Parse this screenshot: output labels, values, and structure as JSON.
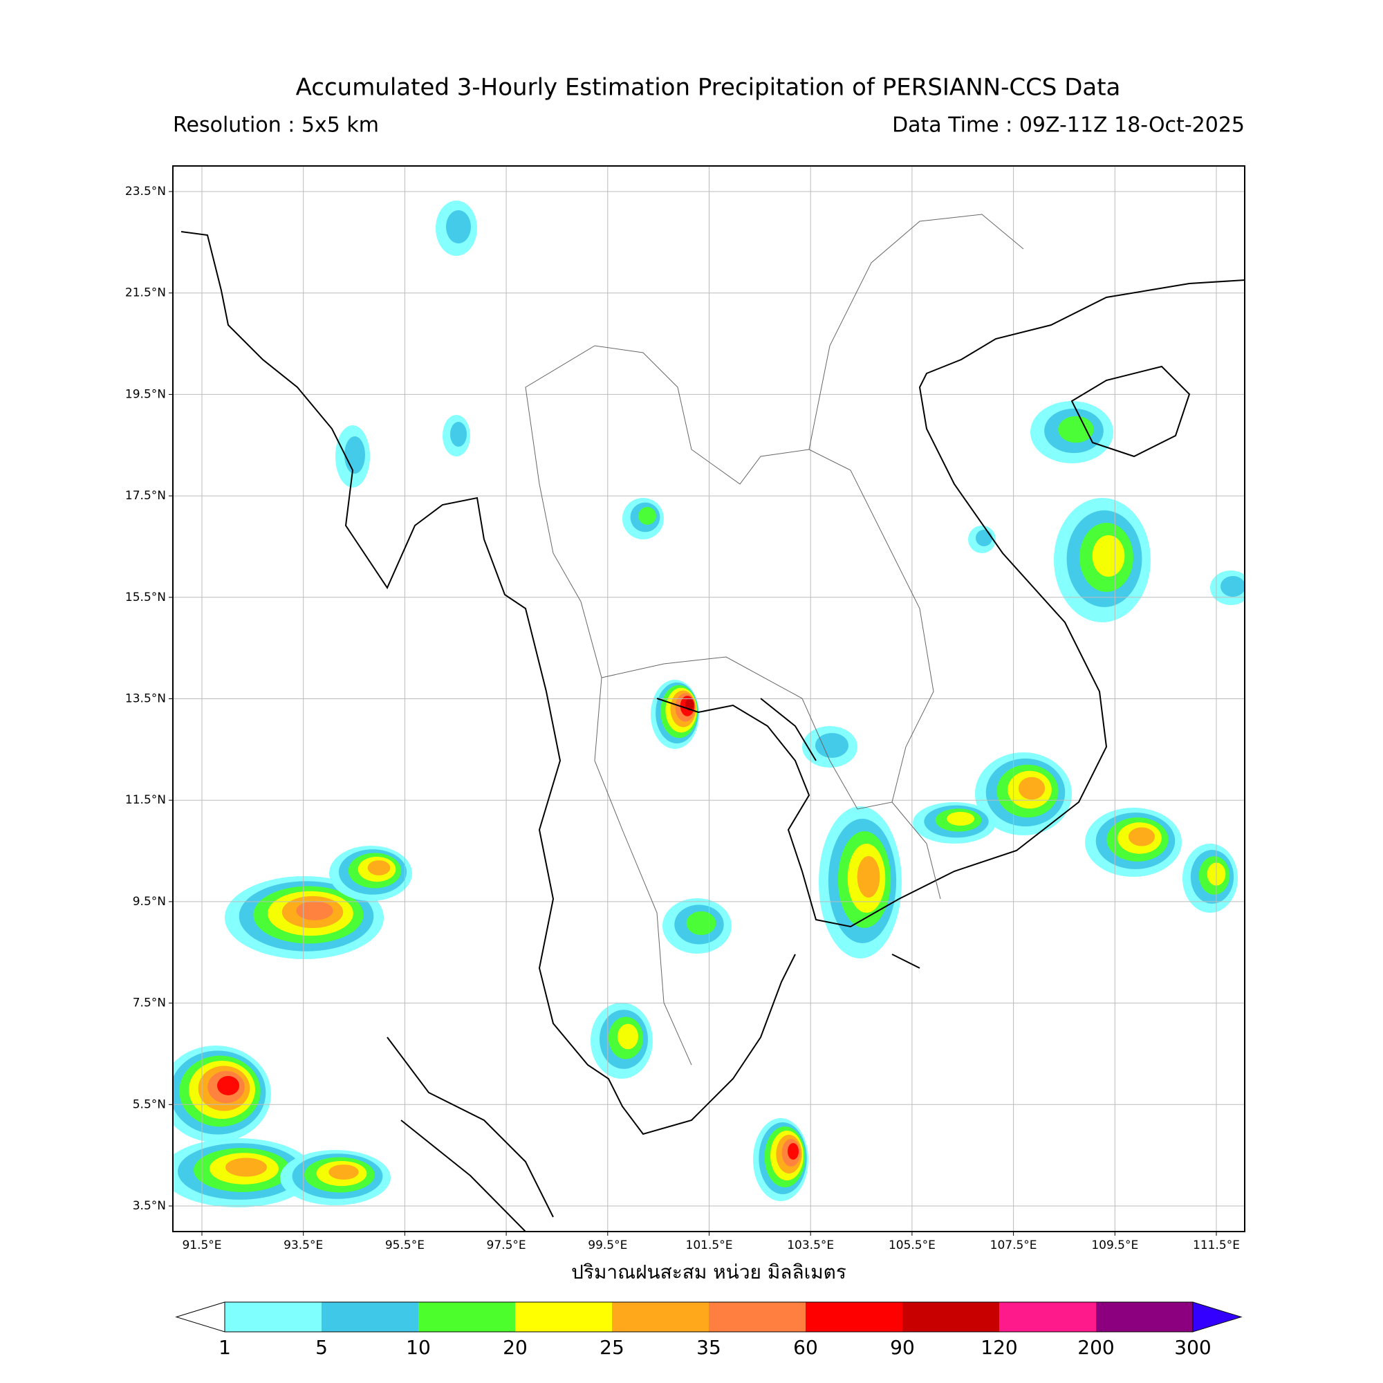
{
  "header": {
    "title": "Accumulated 3-Hourly Estimation Precipitation of PERSIANN-CCS Data",
    "resolution": "Resolution : 5x5 km",
    "data_time": "Data Time : 09Z-11Z 18-Oct-2025"
  },
  "map": {
    "lat_labels": [
      "23.5°N",
      "21.5°N",
      "19.5°N",
      "17.5°N",
      "15.5°N",
      "13.5°N",
      "11.5°N",
      "9.5°N",
      "7.5°N",
      "5.5°N",
      "3.5°N"
    ],
    "lon_labels": [
      "91.5°E",
      "93.5°E",
      "95.5°E",
      "97.5°E",
      "99.5°E",
      "101.5°E",
      "103.5°E",
      "105.5°E",
      "107.5°E",
      "109.5°E",
      "111.5°E"
    ],
    "grid": true,
    "xlabel": "ปริมาณฝนสะสม หน่วย มิลลิเมตร"
  },
  "colorbar": {
    "ticks": [
      1,
      5,
      10,
      20,
      25,
      35,
      60,
      90,
      120,
      200,
      300
    ],
    "colors": [
      "#80ffff",
      "#40c8e8",
      "#4cff2c",
      "#ffff00",
      "#ffa81c",
      "#ff7f40",
      "#ff0000",
      "#c80000",
      "#ff1a8c",
      "#8c0080"
    ],
    "under_color": "#ffffff",
    "over_color": "#3300ff"
  }
}
